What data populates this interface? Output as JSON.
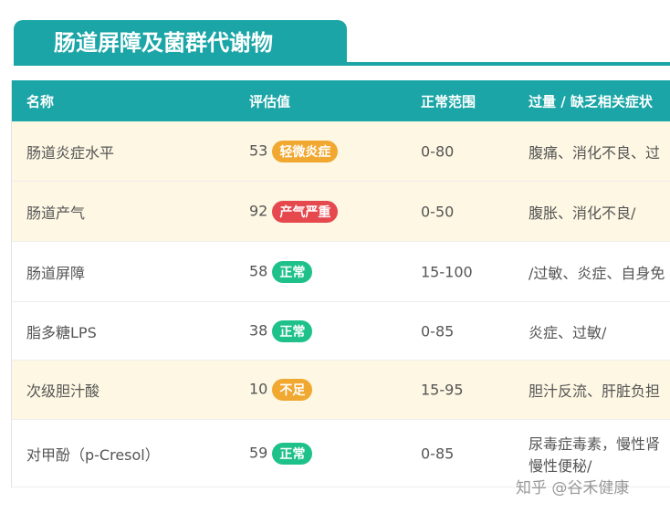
{
  "title": "肠道屏障及菌群代谢物",
  "headers": [
    "名称",
    "评估值",
    "正常范围",
    "过量 / 缺乏相关症状"
  ],
  "rows": [
    {
      "name": "肠道炎症水平",
      "value": "53",
      "badge": "轻微炎症",
      "badge_color": "#f0a830",
      "range": "0-80",
      "symptoms": "腹痛、消化不良、过"
    },
    {
      "name": "肠道产气",
      "value": "92",
      "badge": "产气严重",
      "badge_color": "#e5484d",
      "range": "0-50",
      "symptoms": "腹胀、消化不良/"
    },
    {
      "name": "肠道屏障",
      "value": "58",
      "badge": "正常",
      "badge_color": "#1fc18a",
      "range": "15-100",
      "symptoms": "/过敏、炎症、自身免"
    },
    {
      "name": "脂多糖LPS",
      "value": "38",
      "badge": "正常",
      "badge_color": "#1fc18a",
      "range": "0-85",
      "symptoms": "炎症、过敏/"
    },
    {
      "name": "次级胆汁酸",
      "value": "10",
      "badge": "不足",
      "badge_color": "#f0a830",
      "range": "15-95",
      "symptoms": "胆汁反流、肝脏负担"
    },
    {
      "name": "对甲酚（p-Cresol）",
      "value": "59",
      "badge": "正常",
      "badge_color": "#1fc18a",
      "range": "0-85",
      "symptoms": "尿毒症毒素，慢性肾",
      "symptoms2": "慢性便秘/"
    }
  ],
  "watermark": "知乎 @谷禾健康"
}
